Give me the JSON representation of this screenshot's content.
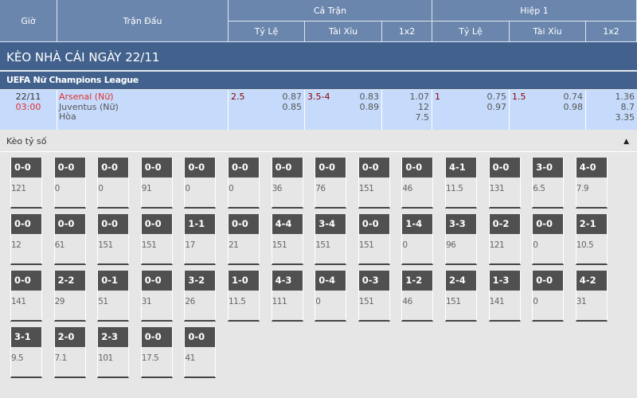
{
  "header": {
    "time": "Giờ",
    "match": "Trận Đấu",
    "full": "Cả Trận",
    "half": "Hiệp 1",
    "handicap": "Tỷ Lệ",
    "overunder": "Tài Xỉu",
    "onextwo": "1x2",
    "handicap2": "Tỷ Lệ",
    "overunder2": "Tài Xỉu",
    "onextwo2": "1x2"
  },
  "title": "KÈO NHÀ CÁI NGÀY 22/11",
  "league": "UEFA Nữ Champions League",
  "match": {
    "date": "22/11",
    "time": "03:00",
    "home": "Arsenal (Nữ)",
    "away": "Juventus (Nữ)",
    "draw": "Hòa",
    "ft_hdp": {
      "line": "2.5",
      "home": "0.87",
      "away": "0.85"
    },
    "ft_ou": {
      "line": "3.5-4",
      "over": "0.83",
      "under": "0.89"
    },
    "ft_1x2": {
      "home": "1.07",
      "away": "12",
      "draw": "7.5"
    },
    "h1_hdp": {
      "line": "1",
      "home": "0.75",
      "away": "0.97"
    },
    "h1_ou": {
      "line": "1.5",
      "over": "0.74",
      "under": "0.98"
    },
    "h1_1x2": {
      "home": "1.36",
      "away": "8.7",
      "draw": "3.35"
    }
  },
  "correct_score": {
    "label": "Kèo tỷ số",
    "cards": [
      {
        "s": "0-0",
        "v": "121"
      },
      {
        "s": "0-0",
        "v": "0"
      },
      {
        "s": "0-0",
        "v": "0"
      },
      {
        "s": "0-0",
        "v": "91"
      },
      {
        "s": "0-0",
        "v": "0"
      },
      {
        "s": "0-0",
        "v": "0"
      },
      {
        "s": "0-0",
        "v": "36"
      },
      {
        "s": "0-0",
        "v": "76"
      },
      {
        "s": "0-0",
        "v": "151"
      },
      {
        "s": "0-0",
        "v": "46"
      },
      {
        "s": "4-1",
        "v": "11.5"
      },
      {
        "s": "0-0",
        "v": "131"
      },
      {
        "s": "3-0",
        "v": "6.5"
      },
      {
        "s": "4-0",
        "v": "7.9"
      },
      {
        "s": "0-0",
        "v": "12"
      },
      {
        "s": "0-0",
        "v": "61"
      },
      {
        "s": "0-0",
        "v": "151"
      },
      {
        "s": "0-0",
        "v": "151"
      },
      {
        "s": "1-1",
        "v": "17"
      },
      {
        "s": "0-0",
        "v": "21"
      },
      {
        "s": "4-4",
        "v": "151"
      },
      {
        "s": "3-4",
        "v": "151"
      },
      {
        "s": "0-0",
        "v": "151"
      },
      {
        "s": "1-4",
        "v": "0"
      },
      {
        "s": "3-3",
        "v": "96"
      },
      {
        "s": "0-2",
        "v": "121"
      },
      {
        "s": "0-0",
        "v": "0"
      },
      {
        "s": "2-1",
        "v": "10.5"
      },
      {
        "s": "0-0",
        "v": "141"
      },
      {
        "s": "2-2",
        "v": "29"
      },
      {
        "s": "0-1",
        "v": "51"
      },
      {
        "s": "0-0",
        "v": "31"
      },
      {
        "s": "3-2",
        "v": "26"
      },
      {
        "s": "1-0",
        "v": "11.5"
      },
      {
        "s": "4-3",
        "v": "111"
      },
      {
        "s": "0-4",
        "v": "0"
      },
      {
        "s": "0-3",
        "v": "151"
      },
      {
        "s": "1-2",
        "v": "46"
      },
      {
        "s": "2-4",
        "v": "151"
      },
      {
        "s": "1-3",
        "v": "141"
      },
      {
        "s": "0-0",
        "v": "0"
      },
      {
        "s": "4-2",
        "v": "31"
      },
      {
        "s": "3-1",
        "v": "9.5"
      },
      {
        "s": "2-0",
        "v": "7.1"
      },
      {
        "s": "2-3",
        "v": "101"
      },
      {
        "s": "0-0",
        "v": "17.5"
      },
      {
        "s": "0-0",
        "v": "41"
      }
    ]
  }
}
